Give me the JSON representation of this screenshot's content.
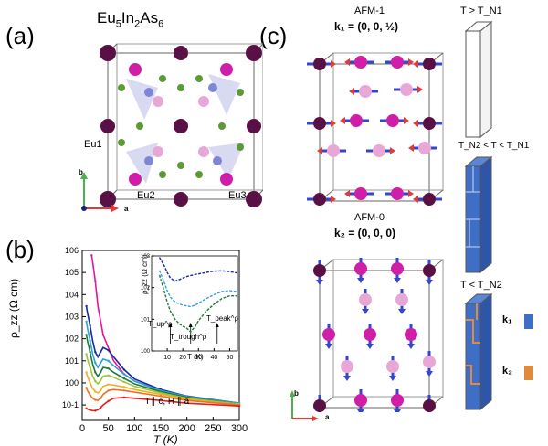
{
  "panels": {
    "a": {
      "letter": "(a)",
      "formula_main": "Eu",
      "formula_sub1": "5",
      "formula_mid": "In",
      "formula_sub2": "2",
      "formula_end": "As",
      "formula_sub3": "6",
      "site_labels": [
        "Eu1",
        "Eu2",
        "Eu3"
      ],
      "axis_b": "b",
      "axis_a": "a"
    },
    "b": {
      "letter": "(b)",
      "ylabel": "ρ_zz (Ω cm)",
      "xlabel": "T (K)",
      "condition": "I ∥ c, H ∥ a",
      "inset_ylabel": "ρ_zz (Ω cm)",
      "inset_xlabel": "T (K)",
      "inset_annotations": [
        "T_up^ρ",
        "T_trough^ρ",
        "T_peak^ρ"
      ]
    },
    "c": {
      "letter": "(c)",
      "afm1_title": "AFM-1",
      "afm1_k": "k₁ = (0, 0, ½)",
      "afm0_title": "AFM-0",
      "afm0_k": "k₂ = (0, 0, 0)",
      "state_labels": [
        "T > T_N1",
        "T_N2 < T < T_N1",
        "T < T_N2"
      ],
      "legend": [
        "k₁",
        "k₂"
      ],
      "axis_b": "b",
      "axis_a": "a"
    }
  },
  "colors": {
    "eu_dark": "#5a1045",
    "eu_magenta": "#d11ea8",
    "eu_pink": "#e8a7d6",
    "in_blue": "#7e86d6",
    "as_green": "#5b9a36",
    "k1_blue": "#3f6ec7",
    "k2_orange": "#e08a3c"
  },
  "chart_data": [
    {
      "type": "line",
      "title": "",
      "xlabel": "T (K)",
      "ylabel": "ρzz (Ω cm)",
      "xlim": [
        0,
        300
      ],
      "ylim_log10": [
        -1.7,
        6
      ],
      "xticks": [
        0,
        50,
        100,
        150,
        200,
        250,
        300
      ],
      "yticks": [
        "10^-1",
        "10^0",
        "10^1",
        "10^2",
        "10^3",
        "10^4",
        "10^5",
        "10^6"
      ],
      "series": [
        {
          "color": "#e8159b",
          "x": [
            18,
            20,
            25,
            30,
            40,
            60,
            80,
            100,
            150,
            200,
            250,
            300
          ],
          "y": [
            600000,
            300000,
            40000,
            3000,
            150,
            10,
            2.5,
            1.2,
            0.45,
            0.25,
            0.17,
            0.12
          ]
        },
        {
          "color": "#1a2a9e",
          "x": [
            8,
            10,
            15,
            20,
            25,
            30,
            35,
            40,
            50,
            60,
            80,
            100,
            150,
            200,
            300
          ],
          "y": [
            3000,
            1500,
            400,
            80,
            25,
            15,
            25,
            40,
            30,
            15,
            4,
            1.5,
            0.5,
            0.25,
            0.12
          ]
        },
        {
          "color": "#2fa0d9",
          "x": [
            8,
            10,
            15,
            20,
            25,
            30,
            35,
            40,
            50,
            60,
            80,
            100,
            150,
            200,
            300
          ],
          "y": [
            600,
            300,
            80,
            20,
            8,
            5,
            8,
            12,
            10,
            6,
            2.5,
            1.2,
            0.45,
            0.24,
            0.12
          ]
        },
        {
          "color": "#1e7a3c",
          "x": [
            8,
            10,
            15,
            20,
            25,
            30,
            35,
            40,
            50,
            60,
            80,
            100,
            150,
            200,
            300
          ],
          "y": [
            150,
            80,
            25,
            7,
            3,
            2,
            3,
            5,
            4.5,
            3,
            1.6,
            0.9,
            0.4,
            0.22,
            0.11
          ]
        },
        {
          "color": "#9cc43a",
          "x": [
            8,
            10,
            15,
            20,
            25,
            30,
            35,
            40,
            50,
            60,
            80,
            100,
            150,
            200,
            300
          ],
          "y": [
            20,
            12,
            5,
            2,
            1.2,
            0.9,
            1.3,
            2,
            2.2,
            1.8,
            1.1,
            0.7,
            0.35,
            0.2,
            0.11
          ]
        },
        {
          "color": "#f0b020",
          "x": [
            8,
            10,
            15,
            20,
            25,
            30,
            35,
            40,
            50,
            60,
            80,
            100,
            150,
            200,
            300
          ],
          "y": [
            3,
            2,
            1,
            0.55,
            0.4,
            0.35,
            0.45,
            0.7,
            0.85,
            0.8,
            0.65,
            0.5,
            0.3,
            0.18,
            0.1
          ]
        },
        {
          "color": "#f07020",
          "x": [
            8,
            10,
            15,
            20,
            25,
            30,
            35,
            40,
            50,
            60,
            80,
            100,
            150,
            200,
            300
          ],
          "y": [
            0.6,
            0.45,
            0.28,
            0.2,
            0.17,
            0.16,
            0.2,
            0.3,
            0.45,
            0.5,
            0.45,
            0.38,
            0.25,
            0.16,
            0.1
          ]
        },
        {
          "color": "#e02020",
          "x": [
            8,
            10,
            15,
            20,
            25,
            30,
            35,
            40,
            50,
            60,
            80,
            100,
            150,
            200,
            300
          ],
          "y": [
            0.07,
            0.065,
            0.06,
            0.055,
            0.055,
            0.06,
            0.075,
            0.1,
            0.15,
            0.2,
            0.22,
            0.2,
            0.16,
            0.12,
            0.09
          ]
        }
      ]
    },
    {
      "type": "line",
      "title": "",
      "xlabel": "T (K)",
      "ylabel": "ρzz (Ω cm)",
      "xlim": [
        0,
        55
      ],
      "ylim_log10": [
        0,
        3
      ],
      "xticks": [
        10,
        20,
        30,
        40,
        50
      ],
      "yticks": [
        "10^0",
        "10^1",
        "10^2",
        "10^3"
      ],
      "series": [
        {
          "color": "#1a2a9e",
          "x": [
            5,
            8,
            10,
            12,
            15,
            18,
            20,
            22,
            25,
            28,
            30,
            35,
            40,
            45,
            50,
            55
          ],
          "y": [
            900,
            500,
            300,
            200,
            160,
            180,
            200,
            220,
            240,
            260,
            270,
            300,
            330,
            340,
            320,
            290
          ]
        },
        {
          "color": "#2fa0d9",
          "x": [
            5,
            8,
            10,
            12,
            15,
            18,
            20,
            22,
            25,
            28,
            30,
            35,
            40,
            45,
            50,
            55
          ],
          "y": [
            350,
            150,
            80,
            50,
            35,
            30,
            28,
            27,
            25,
            28,
            32,
            45,
            60,
            75,
            80,
            75
          ]
        },
        {
          "color": "#1e7a3c",
          "x": [
            5,
            8,
            10,
            12,
            15,
            18,
            20,
            22,
            25,
            28,
            30,
            35,
            40,
            45,
            50,
            55
          ],
          "y": [
            250,
            80,
            35,
            18,
            10,
            7,
            6,
            5.5,
            4,
            6,
            9,
            18,
            30,
            45,
            55,
            55
          ]
        }
      ]
    }
  ]
}
